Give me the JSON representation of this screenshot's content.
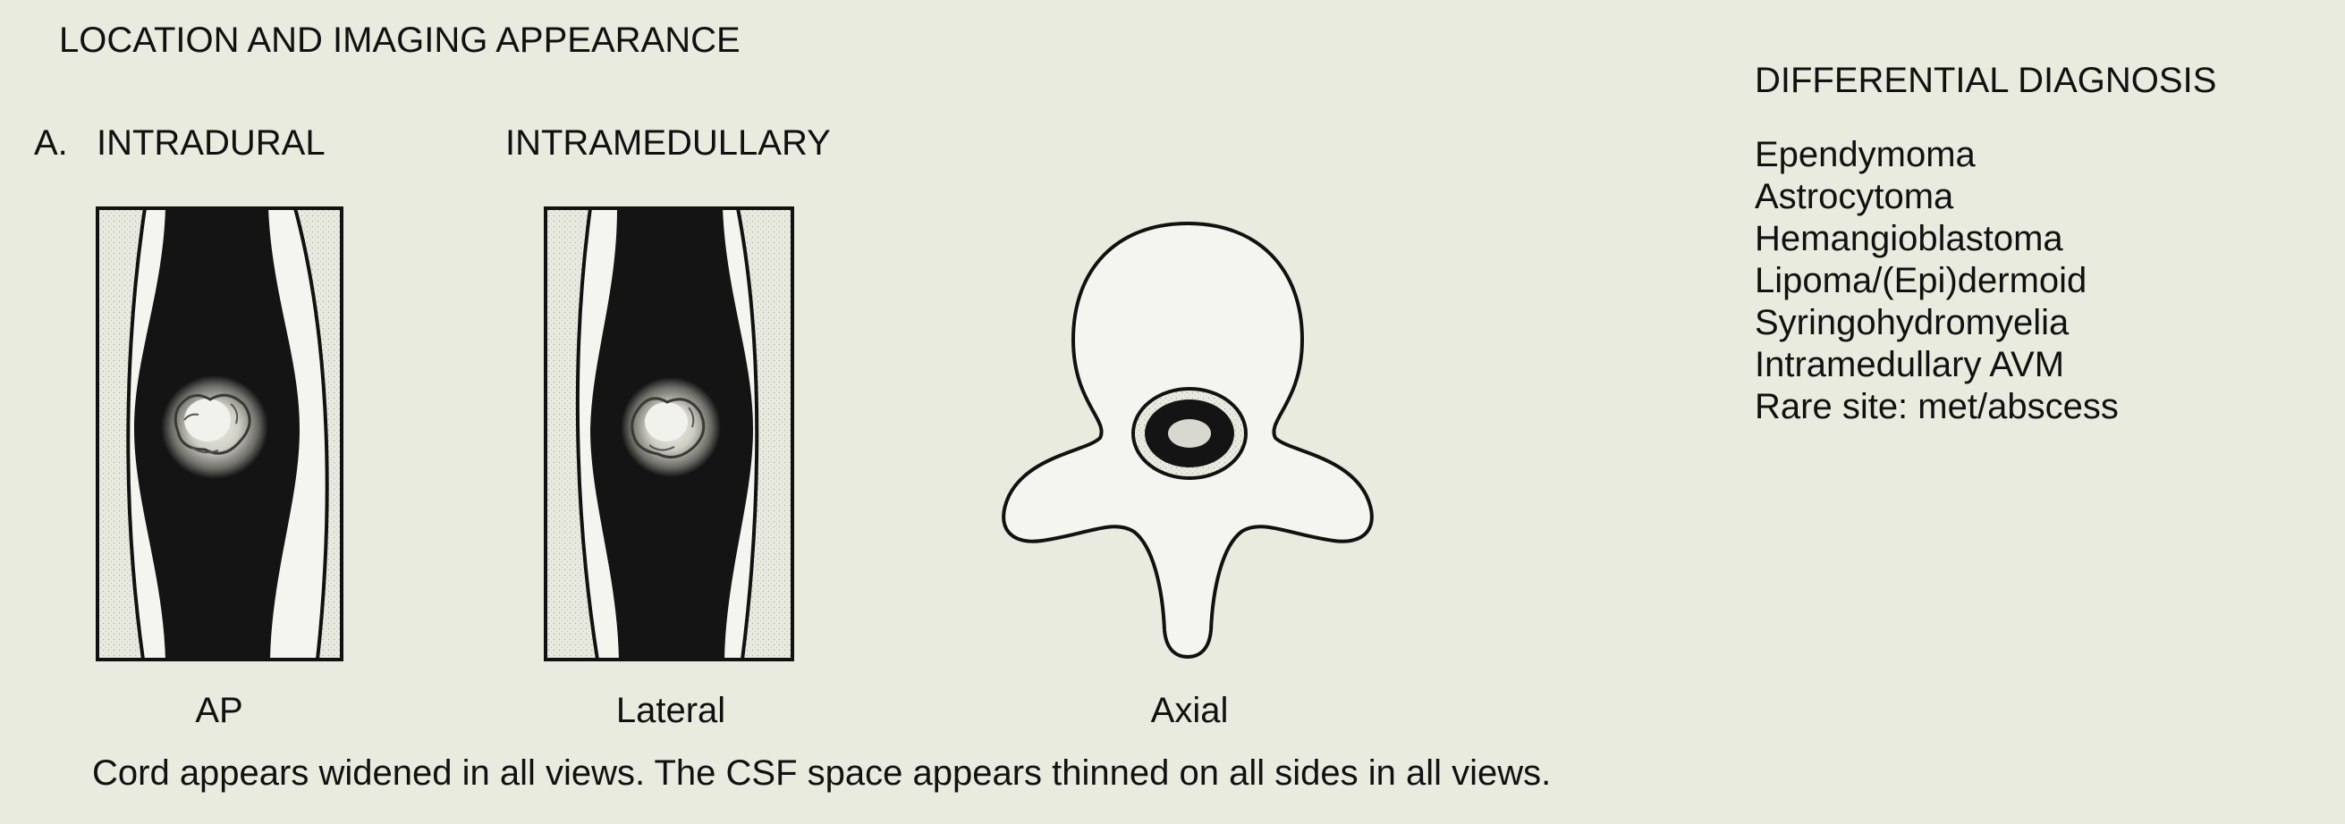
{
  "figure": {
    "section_title": "LOCATION AND IMAGING APPEARANCE",
    "panel_letter": "A.",
    "compartment_label": "INTRADURAL",
    "subcompartment_label": "INTRAMEDULLARY",
    "views": [
      {
        "label": "AP"
      },
      {
        "label": "Lateral"
      },
      {
        "label": "Axial"
      }
    ],
    "caption": "Cord appears widened in all views. The CSF space appears thinned on all sides in all views."
  },
  "differential": {
    "title": "DIFFERENTIAL DIAGNOSIS",
    "items": [
      "Ependymoma",
      "Astrocytoma",
      "Hemangioblastoma",
      "Lipoma/(Epi)dermoid",
      "Syringohydromyelia",
      "Intramedullary AVM",
      "Rare site: met/abscess"
    ]
  },
  "colors": {
    "background": "#e8ebde",
    "ink": "#111111",
    "cord": "#141414",
    "csf": "#f4f5ee",
    "canal_stipple": "#cfd2c4",
    "lesion": "#d8d8d0"
  }
}
